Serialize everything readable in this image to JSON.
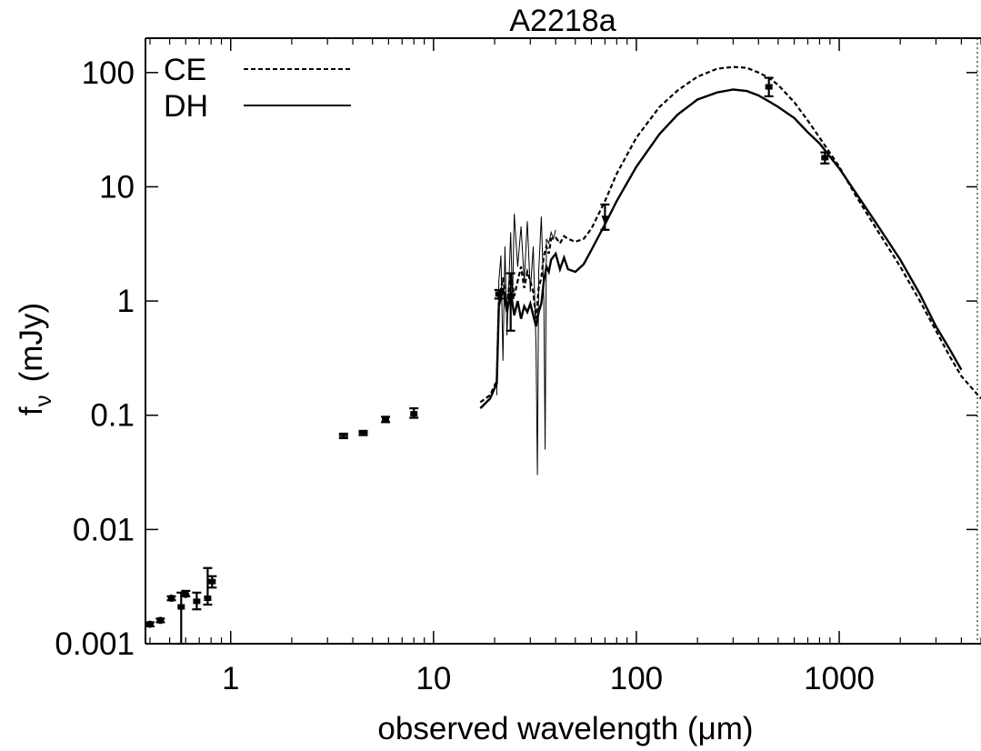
{
  "chart_data": {
    "type": "scatter",
    "title": "A2218a",
    "xlabel_main": "observed wavelength (",
    "xlabel_unit": "μm",
    "xlabel_close": ")",
    "ylabel_f": "f",
    "ylabel_sub": "ν",
    "ylabel_unit": "(mJy)",
    "x_scale": "log",
    "y_scale": "log",
    "xlim": [
      0.38,
      5000
    ],
    "ylim": [
      0.001,
      200
    ],
    "x_ticks": [
      {
        "value": 1,
        "label": "1"
      },
      {
        "value": 10,
        "label": "10"
      },
      {
        "value": 100,
        "label": "100"
      },
      {
        "value": 1000,
        "label": "1000"
      }
    ],
    "y_ticks": [
      {
        "value": 0.001,
        "label": "0.001"
      },
      {
        "value": 0.01,
        "label": "0.01"
      },
      {
        "value": 0.1,
        "label": "0.1"
      },
      {
        "value": 1,
        "label": "1"
      },
      {
        "value": 10,
        "label": "10"
      },
      {
        "value": 100,
        "label": "100"
      }
    ],
    "legend_position": "top-left",
    "series": [
      {
        "name": "CE",
        "style": "dashed",
        "points": [
          [
            17,
            0.13
          ],
          [
            19,
            0.15
          ],
          [
            20.5,
            0.2
          ],
          [
            21,
            1.0
          ],
          [
            22,
            1.6
          ],
          [
            23,
            0.9
          ],
          [
            24,
            1.8
          ],
          [
            25,
            1.1
          ],
          [
            26,
            1.5
          ],
          [
            27,
            2.0
          ],
          [
            28,
            1.3
          ],
          [
            29,
            1.8
          ],
          [
            30,
            1.5
          ],
          [
            31,
            1.2
          ],
          [
            32,
            0.7
          ],
          [
            33,
            1.3
          ],
          [
            34,
            1.6
          ],
          [
            35,
            2.5
          ],
          [
            36,
            3.0
          ],
          [
            37,
            2.6
          ],
          [
            38,
            3.5
          ],
          [
            40,
            3.6
          ],
          [
            42,
            3.2
          ],
          [
            44,
            3.7
          ],
          [
            46,
            3.5
          ],
          [
            50,
            3.3
          ],
          [
            55,
            3.5
          ],
          [
            60,
            4.3
          ],
          [
            70,
            7.5
          ],
          [
            80,
            13
          ],
          [
            100,
            27
          ],
          [
            130,
            50
          ],
          [
            160,
            70
          ],
          [
            200,
            92
          ],
          [
            250,
            108
          ],
          [
            300,
            112
          ],
          [
            350,
            110
          ],
          [
            400,
            100
          ],
          [
            450,
            90
          ],
          [
            500,
            78
          ],
          [
            600,
            55
          ],
          [
            700,
            38
          ],
          [
            800,
            27
          ],
          [
            1000,
            15
          ],
          [
            1200,
            8.5
          ],
          [
            1500,
            4.5
          ],
          [
            2000,
            2.0
          ],
          [
            2500,
            1.0
          ],
          [
            3000,
            0.55
          ],
          [
            3500,
            0.33
          ],
          [
            4000,
            0.22
          ],
          [
            5000,
            0.14
          ]
        ]
      },
      {
        "name": "DH",
        "style": "solid",
        "points": [
          [
            17,
            0.115
          ],
          [
            19,
            0.14
          ],
          [
            20.5,
            0.19
          ],
          [
            21,
            0.9
          ],
          [
            22,
            1.3
          ],
          [
            23,
            0.8
          ],
          [
            24,
            1.2
          ],
          [
            25,
            0.75
          ],
          [
            26,
            1.0
          ],
          [
            27,
            0.7
          ],
          [
            28,
            0.9
          ],
          [
            29,
            0.8
          ],
          [
            30,
            0.95
          ],
          [
            31,
            0.75
          ],
          [
            32,
            0.6
          ],
          [
            33,
            0.8
          ],
          [
            34,
            0.95
          ],
          [
            35,
            1.5
          ],
          [
            36,
            2.0
          ],
          [
            37,
            1.8
          ],
          [
            38,
            2.3
          ],
          [
            40,
            2.6
          ],
          [
            42,
            1.9
          ],
          [
            44,
            2.4
          ],
          [
            46,
            1.9
          ],
          [
            50,
            1.8
          ],
          [
            55,
            2.1
          ],
          [
            60,
            2.8
          ],
          [
            70,
            4.7
          ],
          [
            80,
            7.5
          ],
          [
            100,
            15
          ],
          [
            130,
            29
          ],
          [
            160,
            43
          ],
          [
            200,
            58
          ],
          [
            250,
            67
          ],
          [
            300,
            71
          ],
          [
            350,
            69
          ],
          [
            400,
            63
          ],
          [
            450,
            56
          ],
          [
            500,
            50
          ],
          [
            600,
            40
          ],
          [
            700,
            30
          ],
          [
            800,
            24
          ],
          [
            1000,
            14.5
          ],
          [
            1200,
            9.0
          ],
          [
            1500,
            5.0
          ],
          [
            2000,
            2.3
          ],
          [
            2500,
            1.15
          ],
          [
            3000,
            0.6
          ],
          [
            3500,
            0.38
          ],
          [
            4000,
            0.25
          ]
        ]
      },
      {
        "name": "",
        "style": "thin",
        "points": [
          [
            20.5,
            0.15
          ],
          [
            21,
            1.5
          ],
          [
            21.5,
            2.5
          ],
          [
            22,
            0.3
          ],
          [
            22.5,
            3.0
          ],
          [
            23,
            0.5
          ],
          [
            24,
            4.0
          ],
          [
            24.5,
            1.0
          ],
          [
            25,
            5.8
          ],
          [
            26,
            2.0
          ],
          [
            27,
            4.5
          ],
          [
            28,
            1.5
          ],
          [
            29,
            5.0
          ],
          [
            30,
            1.2
          ],
          [
            31,
            3.0
          ],
          [
            32,
            0.4
          ],
          [
            32.5,
            0.03
          ],
          [
            33,
            1.8
          ],
          [
            34,
            5.5
          ],
          [
            35,
            1.0
          ],
          [
            35.5,
            0.05
          ],
          [
            36,
            3.5
          ],
          [
            37,
            3.2
          ],
          [
            38,
            4.0
          ],
          [
            39,
            3.5
          ],
          [
            40,
            4.2
          ]
        ]
      }
    ],
    "observations": [
      {
        "x": 0.4,
        "y": 0.00148,
        "err": [
          0.00142,
          0.00154
        ],
        "marker": "dot"
      },
      {
        "x": 0.45,
        "y": 0.0016,
        "err": [
          0.00154,
          0.00166
        ],
        "marker": "dot"
      },
      {
        "x": 0.51,
        "y": 0.0025,
        "err": [
          0.0024,
          0.0026
        ],
        "marker": "dot"
      },
      {
        "x": 0.57,
        "y": 0.0021,
        "err": [
          0.001,
          0.0028
        ],
        "marker": "bar"
      },
      {
        "x": 0.6,
        "y": 0.0027,
        "err": [
          0.0026,
          0.0029
        ],
        "marker": "dot"
      },
      {
        "x": 0.68,
        "y": 0.00235,
        "err": [
          0.002,
          0.0028
        ],
        "marker": "bar"
      },
      {
        "x": 0.77,
        "y": 0.0025,
        "err": [
          0.0022,
          0.0046
        ],
        "marker": "bar"
      },
      {
        "x": 0.81,
        "y": 0.0035,
        "err": [
          0.0031,
          0.0039
        ],
        "marker": "bar"
      },
      {
        "x": 3.6,
        "y": 0.066,
        "err": [
          0.063,
          0.069
        ],
        "marker": "plus"
      },
      {
        "x": 4.5,
        "y": 0.07,
        "err": [
          0.067,
          0.073
        ],
        "marker": "plus"
      },
      {
        "x": 5.8,
        "y": 0.092,
        "err": [
          0.087,
          0.097
        ],
        "marker": "bar"
      },
      {
        "x": 8.0,
        "y": 0.103,
        "err": [
          0.095,
          0.115
        ],
        "marker": "bar"
      },
      {
        "x": 21,
        "y": 1.15,
        "err": [
          1.05,
          1.25
        ],
        "marker": "bar"
      },
      {
        "x": 24,
        "y": 1.1,
        "err": [
          0.55,
          1.75
        ],
        "marker": "bar"
      },
      {
        "x": 70,
        "y": 5.0,
        "err": [
          4.2,
          7.0
        ],
        "marker": "arrow"
      },
      {
        "x": 450,
        "y": 75,
        "err": [
          62,
          90
        ],
        "marker": "bar"
      },
      {
        "x": 850,
        "y": 18,
        "err": [
          16,
          20
        ],
        "marker": "bar"
      }
    ]
  }
}
